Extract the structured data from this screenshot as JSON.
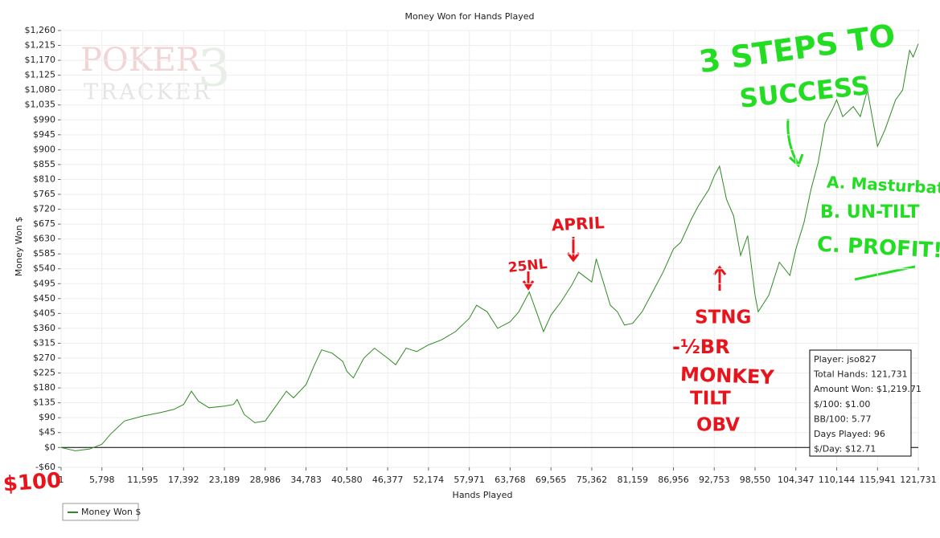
{
  "chart_data": {
    "type": "line",
    "title": "Money Won for Hands Played",
    "x_label": "Hands Played",
    "y_label": "Money Won $",
    "x": [
      1,
      2000,
      4000,
      5798,
      7000,
      9000,
      11595,
      14000,
      16000,
      17392,
      18500,
      19500,
      21000,
      23189,
      24500,
      25000,
      26000,
      27500,
      28986,
      30000,
      32000,
      33000,
      34783,
      36000,
      37000,
      38500,
      40000,
      40580,
      41500,
      43000,
      44500,
      46377,
      47500,
      49000,
      50500,
      52174,
      54000,
      56000,
      57971,
      59000,
      60500,
      62000,
      63768,
      65000,
      66500,
      67500,
      68500,
      69565,
      71000,
      72500,
      73500,
      75362,
      76000,
      77000,
      78000,
      79000,
      80000,
      81159,
      82500,
      84000,
      85500,
      86956,
      88000,
      89500,
      90500,
      92000,
      92753,
      93500,
      94500,
      95500,
      96500,
      97500,
      98550,
      99000,
      100500,
      102000,
      103500,
      104347,
      105500,
      106500,
      107500,
      108500,
      109500,
      110144,
      111000,
      112500,
      113500,
      114500,
      115941,
      117000,
      118500,
      119500,
      120500,
      121000,
      121731
    ],
    "series": [
      {
        "name": "Money Won $",
        "color": "#2e8b22",
        "values": [
          0,
          -10,
          -5,
          10,
          40,
          80,
          95,
          105,
          115,
          130,
          170,
          140,
          120,
          125,
          130,
          145,
          100,
          75,
          80,
          110,
          170,
          150,
          190,
          250,
          295,
          285,
          260,
          230,
          210,
          270,
          300,
          270,
          250,
          300,
          290,
          310,
          325,
          350,
          390,
          430,
          410,
          360,
          380,
          410,
          470,
          410,
          350,
          400,
          440,
          490,
          530,
          500,
          570,
          500,
          430,
          410,
          370,
          375,
          410,
          470,
          530,
          600,
          620,
          690,
          730,
          780,
          820,
          850,
          750,
          700,
          580,
          640,
          460,
          410,
          460,
          560,
          520,
          600,
          680,
          780,
          860,
          980,
          1020,
          1050,
          1000,
          1030,
          1000,
          1080,
          910,
          960,
          1050,
          1080,
          1200,
          1180,
          1220
        ]
      }
    ],
    "xlim": [
      1,
      121731
    ],
    "xticks": [
      {
        "value": 1,
        "label": "1"
      },
      {
        "value": 5798,
        "label": "5,798"
      },
      {
        "value": 11595,
        "label": "11,595"
      },
      {
        "value": 17392,
        "label": "17,392"
      },
      {
        "value": 23189,
        "label": "23,189"
      },
      {
        "value": 28986,
        "label": "28,986"
      },
      {
        "value": 34783,
        "label": "34,783"
      },
      {
        "value": 40580,
        "label": "40,580"
      },
      {
        "value": 46377,
        "label": "46,377"
      },
      {
        "value": 52174,
        "label": "52,174"
      },
      {
        "value": 57971,
        "label": "57,971"
      },
      {
        "value": 63768,
        "label": "63,768"
      },
      {
        "value": 69565,
        "label": "69,565"
      },
      {
        "value": 75362,
        "label": "75,362"
      },
      {
        "value": 81159,
        "label": "81,159"
      },
      {
        "value": 86956,
        "label": "86,956"
      },
      {
        "value": 92753,
        "label": "92,753"
      },
      {
        "value": 98550,
        "label": "98,550"
      },
      {
        "value": 104347,
        "label": "104,347"
      },
      {
        "value": 110144,
        "label": "110,144"
      },
      {
        "value": 115941,
        "label": "115,941"
      },
      {
        "value": 121731,
        "label": "121,731"
      }
    ],
    "ylim": [
      -60,
      1260
    ],
    "yticks": [
      {
        "value": -60,
        "label": "-$60"
      },
      {
        "value": 0,
        "label": "$0"
      },
      {
        "value": 45,
        "label": "$45"
      },
      {
        "value": 90,
        "label": "$90"
      },
      {
        "value": 135,
        "label": "$135"
      },
      {
        "value": 180,
        "label": "$180"
      },
      {
        "value": 225,
        "label": "$225"
      },
      {
        "value": 270,
        "label": "$270"
      },
      {
        "value": 315,
        "label": "$315"
      },
      {
        "value": 360,
        "label": "$360"
      },
      {
        "value": 405,
        "label": "$405"
      },
      {
        "value": 450,
        "label": "$450"
      },
      {
        "value": 495,
        "label": "$495"
      },
      {
        "value": 540,
        "label": "$540"
      },
      {
        "value": 585,
        "label": "$585"
      },
      {
        "value": 630,
        "label": "$630"
      },
      {
        "value": 675,
        "label": "$675"
      },
      {
        "value": 720,
        "label": "$720"
      },
      {
        "value": 765,
        "label": "$765"
      },
      {
        "value": 810,
        "label": "$810"
      },
      {
        "value": 855,
        "label": "$855"
      },
      {
        "value": 900,
        "label": "$900"
      },
      {
        "value": 945,
        "label": "$945"
      },
      {
        "value": 990,
        "label": "$990"
      },
      {
        "value": 1035,
        "label": "$1,035"
      },
      {
        "value": 1080,
        "label": "$1,080"
      },
      {
        "value": 1125,
        "label": "$1,125"
      },
      {
        "value": 1170,
        "label": "$1,170"
      },
      {
        "value": 1215,
        "label": "$1,215"
      },
      {
        "value": 1260,
        "label": "$1,260"
      }
    ],
    "grid": true,
    "watermark": [
      "POKER",
      "TRACKER",
      "3"
    ],
    "stats": [
      "Player: jso827",
      "Total Hands: 121,731",
      "Amount Won: $1,219.71",
      "$/100: $1.00",
      "BB/100: 5.77",
      "Days Played: 96",
      "$/Day: $12.71"
    ],
    "annotations": [
      "3 STEPS TO",
      "SUCCESS",
      "A. Masturbate",
      "B. UN-TILT",
      "C. PROFIT!!!",
      "APRIL",
      "25NL",
      "STNG",
      "-½BR",
      "MONKEY",
      "TILT",
      "OBV",
      "$100"
    ]
  }
}
